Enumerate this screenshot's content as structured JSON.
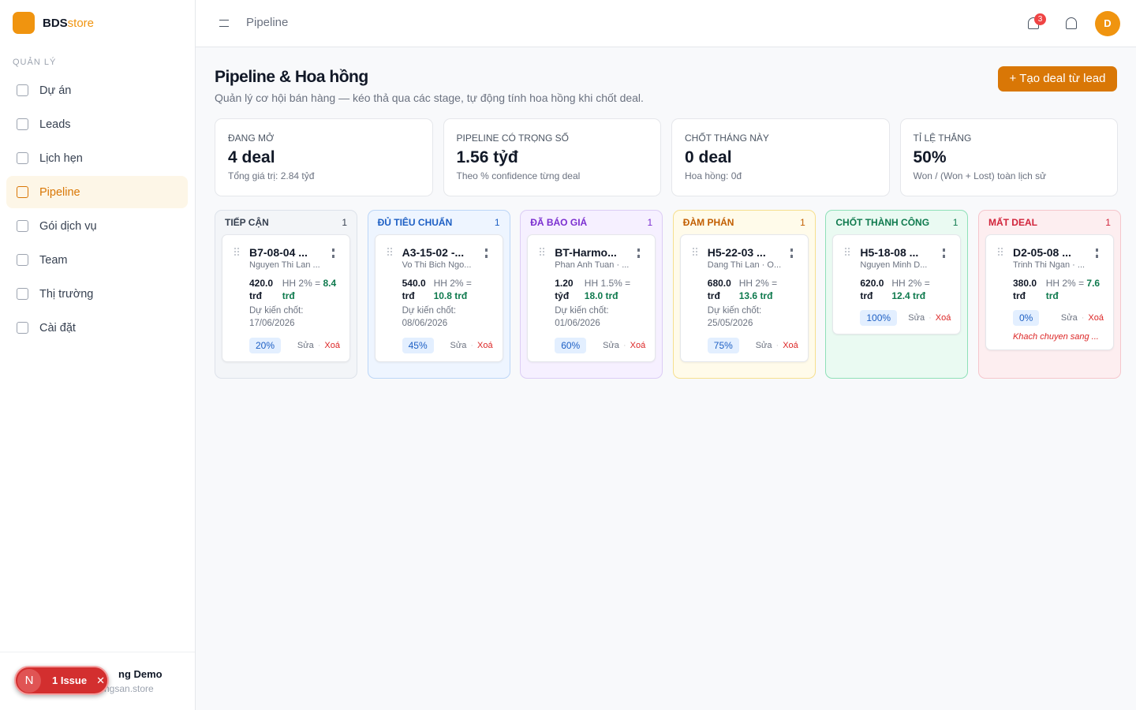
{
  "brand": {
    "bold": "BDS",
    "light": "store"
  },
  "sidebar": {
    "section": "QUẢN LÝ",
    "items": [
      "Dự án",
      "Leads",
      "Lịch hẹn",
      "Pipeline",
      "Gói dịch vụ",
      "Team",
      "Thị trường",
      "Cài đặt"
    ],
    "active": 3,
    "user": {
      "name": "ng Demo",
      "email": "ngsan.store"
    }
  },
  "issue_badge": {
    "letter": "N",
    "label": "1 Issue"
  },
  "topbar": {
    "breadcrumb": "Pipeline",
    "notifications": "3",
    "avatar": "D"
  },
  "header": {
    "title": "Pipeline & Hoa hồng",
    "subtitle": "Quản lý cơ hội bán hàng — kéo thả qua các stage, tự động tính hoa hồng khi chốt deal.",
    "button": "+ Tạo deal từ lead"
  },
  "stats": [
    {
      "label": "ĐANG MỞ",
      "value": "4 deal",
      "note": "Tổng giá trị: 2.84 tỷđ"
    },
    {
      "label": "PIPELINE CÓ TRỌNG SỐ",
      "value": "1.56 tỷđ",
      "note": "Theo % confidence từng deal"
    },
    {
      "label": "CHỐT THÁNG NÀY",
      "value": "0 deal",
      "note": "Hoa hồng: 0đ"
    },
    {
      "label": "TỈ LỆ THẮNG",
      "value": "50%",
      "note": "Won / (Won + Lost) toàn lịch sử"
    }
  ],
  "columns": [
    {
      "name": "TIẾP CẬN",
      "count": "1",
      "color": "#374151",
      "bg": "#f3f5f8",
      "border": "#dde2ea",
      "card": {
        "title": "B7-08-04 ...",
        "subtitle": "Nguyen Thi Lan ...",
        "amount": "420.0 trđ",
        "commission_label": "HH 2% =",
        "commission": "8.4 trđ",
        "date_label": "Dự kiến chốt:",
        "date": "17/06/2026",
        "confidence": "20%",
        "edit": "Sửa",
        "delete": "Xoá"
      }
    },
    {
      "name": "ĐỦ TIÊU CHUẨN",
      "count": "1",
      "color": "#1d5fc4",
      "bg": "#eef5ff",
      "border": "#bcd6f7",
      "card": {
        "title": "A3-15-02 -...",
        "subtitle": "Vo Thi Bich Ngo...",
        "amount": "540.0 trđ",
        "commission_label": "HH 2% =",
        "commission": "10.8 trđ",
        "date_label": "Dự kiến chốt:",
        "date": "08/06/2026",
        "confidence": "45%",
        "edit": "Sửa",
        "delete": "Xoá"
      }
    },
    {
      "name": "ĐÃ BÁO GIÁ",
      "count": "1",
      "color": "#7b2fd0",
      "bg": "#f6f0ff",
      "border": "#dccdf5",
      "card": {
        "title": "BT-Harmo...",
        "subtitle": "Phan Anh Tuan · ...",
        "amount": "1.20 tỷđ",
        "commission_label": "HH 1.5% =",
        "commission": "18.0 trđ",
        "date_label": "Dự kiến chốt:",
        "date": "01/06/2026",
        "confidence": "60%",
        "edit": "Sửa",
        "delete": "Xoá"
      }
    },
    {
      "name": "ĐÀM PHÁN",
      "count": "1",
      "color": "#c25e00",
      "bg": "#fffbea",
      "border": "#f6df8e",
      "card": {
        "title": "H5-22-03 ...",
        "subtitle": "Dang Thi Lan · O...",
        "amount": "680.0 trđ",
        "commission_label": "HH 2% =",
        "commission": "13.6 trđ",
        "date_label": "Dự kiến chốt:",
        "date": "25/05/2026",
        "confidence": "75%",
        "edit": "Sửa",
        "delete": "Xoá"
      }
    },
    {
      "name": "CHỐT THÀNH CÔNG",
      "count": "1",
      "color": "#0f7a4e",
      "bg": "#eafaf2",
      "border": "#8fe0b8",
      "card": {
        "title": "H5-18-08 ...",
        "subtitle": "Nguyen Minh D...",
        "amount": "620.0 trđ",
        "commission_label": "HH 2% =",
        "commission": "12.4 trđ",
        "confidence": "100%",
        "edit": "Sửa",
        "delete": "Xoá"
      }
    },
    {
      "name": "MẤT DEAL",
      "count": "1",
      "color": "#d1243b",
      "bg": "#fdeef0",
      "border": "#f5c6cc",
      "card": {
        "title": "D2-05-08 ...",
        "subtitle": "Trinh Thi Ngan · ...",
        "amount": "380.0 trđ",
        "commission_label": "HH 2% =",
        "commission": "7.6 trđ",
        "confidence": "0%",
        "edit": "Sửa",
        "delete": "Xoá",
        "note": "Khach chuyen sang ..."
      }
    }
  ]
}
